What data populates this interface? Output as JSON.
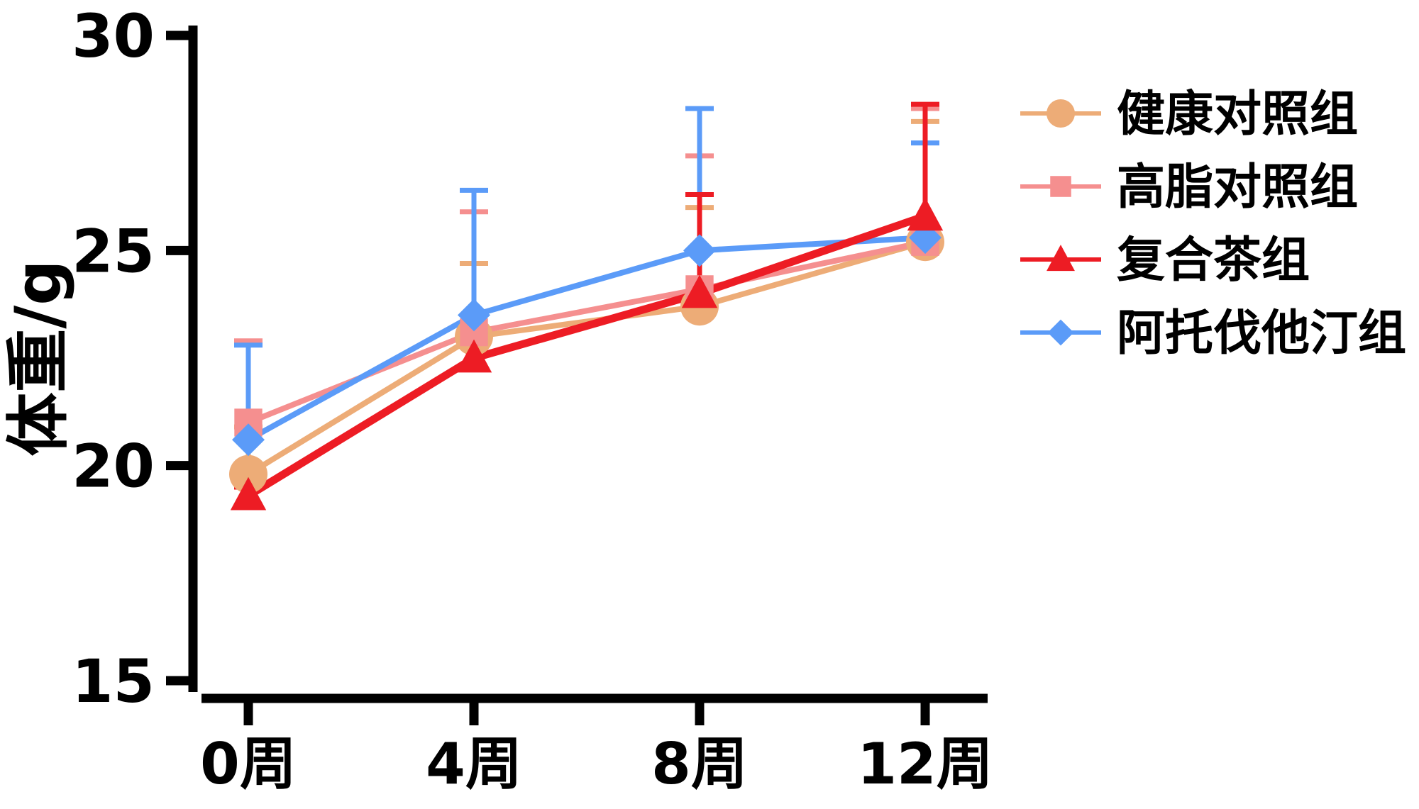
{
  "figure": {
    "background": "#ffffff"
  },
  "chart_data": {
    "type": "line",
    "title": "",
    "xlabel": "",
    "ylabel": "体重/g",
    "ylim": [
      15,
      30
    ],
    "y_ticks": [
      30,
      25,
      20,
      15
    ],
    "categories": [
      "0周",
      "4周",
      "8周",
      "12周"
    ],
    "grid": false,
    "legend_position": "right",
    "error_bars": "upward one-sided, per point",
    "series": [
      {
        "id": "healthy-control",
        "name": "健康对照组",
        "color": "#EDAC77",
        "marker": "circle",
        "values": [
          19.8,
          23.0,
          23.7,
          25.2
        ],
        "error_up": [
          1.1,
          1.7,
          2.3,
          2.8
        ]
      },
      {
        "id": "high-fat-control",
        "name": "高脂对照组",
        "color": "#F58F8F",
        "marker": "square",
        "values": [
          21.0,
          23.1,
          24.1,
          25.2
        ],
        "error_up": [
          1.9,
          2.8,
          3.1,
          3.1
        ]
      },
      {
        "id": "compound-tea",
        "name": "复合茶组",
        "color": "#ED1C24",
        "marker": "triangle",
        "values": [
          19.3,
          22.5,
          24.0,
          25.8
        ],
        "error_up": [
          0.2,
          0.4,
          2.3,
          2.6
        ]
      },
      {
        "id": "atorvastatin",
        "name": "阿托伐他汀组",
        "color": "#5B9BF8",
        "marker": "diamond",
        "values": [
          20.6,
          23.5,
          25.0,
          25.3
        ],
        "error_up": [
          2.2,
          2.9,
          3.3,
          2.2
        ]
      }
    ]
  }
}
